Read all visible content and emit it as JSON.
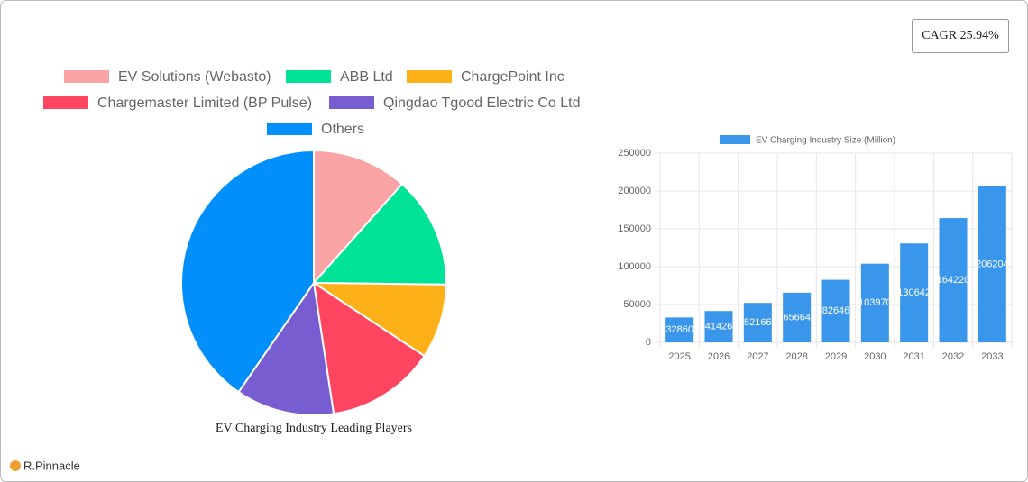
{
  "badge": "CAGR 25.94%",
  "brand": "R.Pinnacle",
  "chart_data": [
    {
      "type": "pie",
      "title": "EV Charging Industry Leading Players",
      "categories": [
        "EV Solutions (Webasto)",
        "ABB Ltd",
        "ChargePoint Inc",
        "Chargemaster Limited (BP Pulse)",
        "Qingdao Tgood Electric Co  Ltd",
        "Others"
      ],
      "values": [
        11.6,
        13.6,
        9.1,
        13.3,
        12.0,
        40.4
      ],
      "colors": [
        "#f9a3a4",
        "#00e396",
        "#feb019",
        "#ff4560",
        "#775dd0",
        "#008ffb"
      ]
    },
    {
      "type": "bar",
      "categories": [
        "2025",
        "2026",
        "2027",
        "2028",
        "2029",
        "2030",
        "2031",
        "2032",
        "2033"
      ],
      "series": [
        {
          "name": "EV Charging Industry Size (Million)",
          "color": "#3a96ea",
          "values": [
            32860,
            41426,
            52166,
            65664,
            82646,
            103970,
            130642,
            164220,
            206204
          ]
        }
      ],
      "ylim": [
        0,
        250000
      ],
      "yticks": [
        0,
        50000,
        100000,
        150000,
        200000,
        250000
      ],
      "grid": true
    }
  ]
}
